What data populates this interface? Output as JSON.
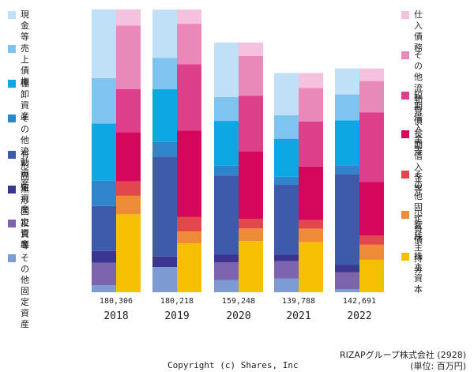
{
  "chart_data": {
    "type": "bar",
    "subtype": "stacked-balance-sheet",
    "categories": [
      "2018",
      "2019",
      "2020",
      "2021",
      "2022"
    ],
    "totals": [
      "180,306",
      "180,218",
      "159,248",
      "139,788",
      "142,691"
    ],
    "total_values": [
      180306,
      180218,
      159248,
      139788,
      142691
    ],
    "ylim": [
      0,
      180306
    ],
    "assets": {
      "series": [
        {
          "name": "現金等",
          "color": "#bfe0f6",
          "values": [
            43700,
            30700,
            34800,
            26900,
            16500
          ]
        },
        {
          "name": "売上債権",
          "color": "#7fc4f0",
          "values": [
            29100,
            20100,
            15200,
            15000,
            16600
          ]
        },
        {
          "name": "棚卸資産",
          "color": "#0da7e4",
          "values": [
            36400,
            33600,
            28500,
            24300,
            28600
          ]
        },
        {
          "name": "その他\n流動資産",
          "color": "#2f84cc",
          "values": [
            16100,
            9300,
            6300,
            5100,
            5600
          ]
        },
        {
          "name": "有形固定資産",
          "color": "#3d5aab",
          "values": [
            28700,
            63700,
            50300,
            44400,
            58000
          ]
        },
        {
          "name": "無形固定資産",
          "color": "#3b3490",
          "values": [
            7500,
            6700,
            5000,
            4300,
            4700
          ]
        },
        {
          "name": "投資等",
          "color": "#7b63ad",
          "values": [
            14300,
            0,
            11400,
            11100,
            10700
          ]
        },
        {
          "name": "その他\n固定資産",
          "color": "#7d9ad3",
          "values": [
            4506,
            16118,
            7748,
            8688,
            1991
          ]
        }
      ]
    },
    "liabilities": {
      "series": [
        {
          "name": "仕入債務",
          "color": "#f5c1dc",
          "values": [
            10300,
            9000,
            8600,
            9500,
            8000
          ]
        },
        {
          "name": "その他\n流動負債",
          "color": "#e889b9",
          "values": [
            40400,
            25800,
            25300,
            21500,
            20100
          ]
        },
        {
          "name": "短期借入金等",
          "color": "#dd3f8b",
          "values": [
            27500,
            42400,
            35700,
            28600,
            44300
          ]
        },
        {
          "name": "長期借入金等",
          "color": "#d5065c",
          "values": [
            31400,
            55100,
            42800,
            34200,
            34200
          ]
        },
        {
          "name": "その他\n固定負債",
          "color": "#e2474c",
          "values": [
            9200,
            9200,
            6200,
            5400,
            5800
          ]
        },
        {
          "name": "少数株主持分",
          "color": "#ee8a38",
          "values": [
            11800,
            7600,
            8000,
            8700,
            9600
          ]
        },
        {
          "name": "株主資本",
          "color": "#f5c000",
          "values": [
            49706,
            31118,
            32648,
            31888,
            20691
          ]
        }
      ]
    }
  },
  "footer": {
    "company": "RIZAPグループ株式会社 (2928)",
    "unit": "(単位: 百万円)",
    "copyright": "Copyright (c) Shares, Inc"
  }
}
